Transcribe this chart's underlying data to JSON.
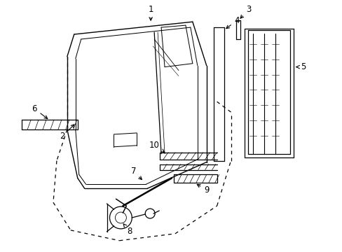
{
  "background": "#ffffff",
  "lc": "#000000",
  "fig_w": 4.89,
  "fig_h": 3.6,
  "dpi": 100,
  "lw": 0.9,
  "fs": 8.5
}
